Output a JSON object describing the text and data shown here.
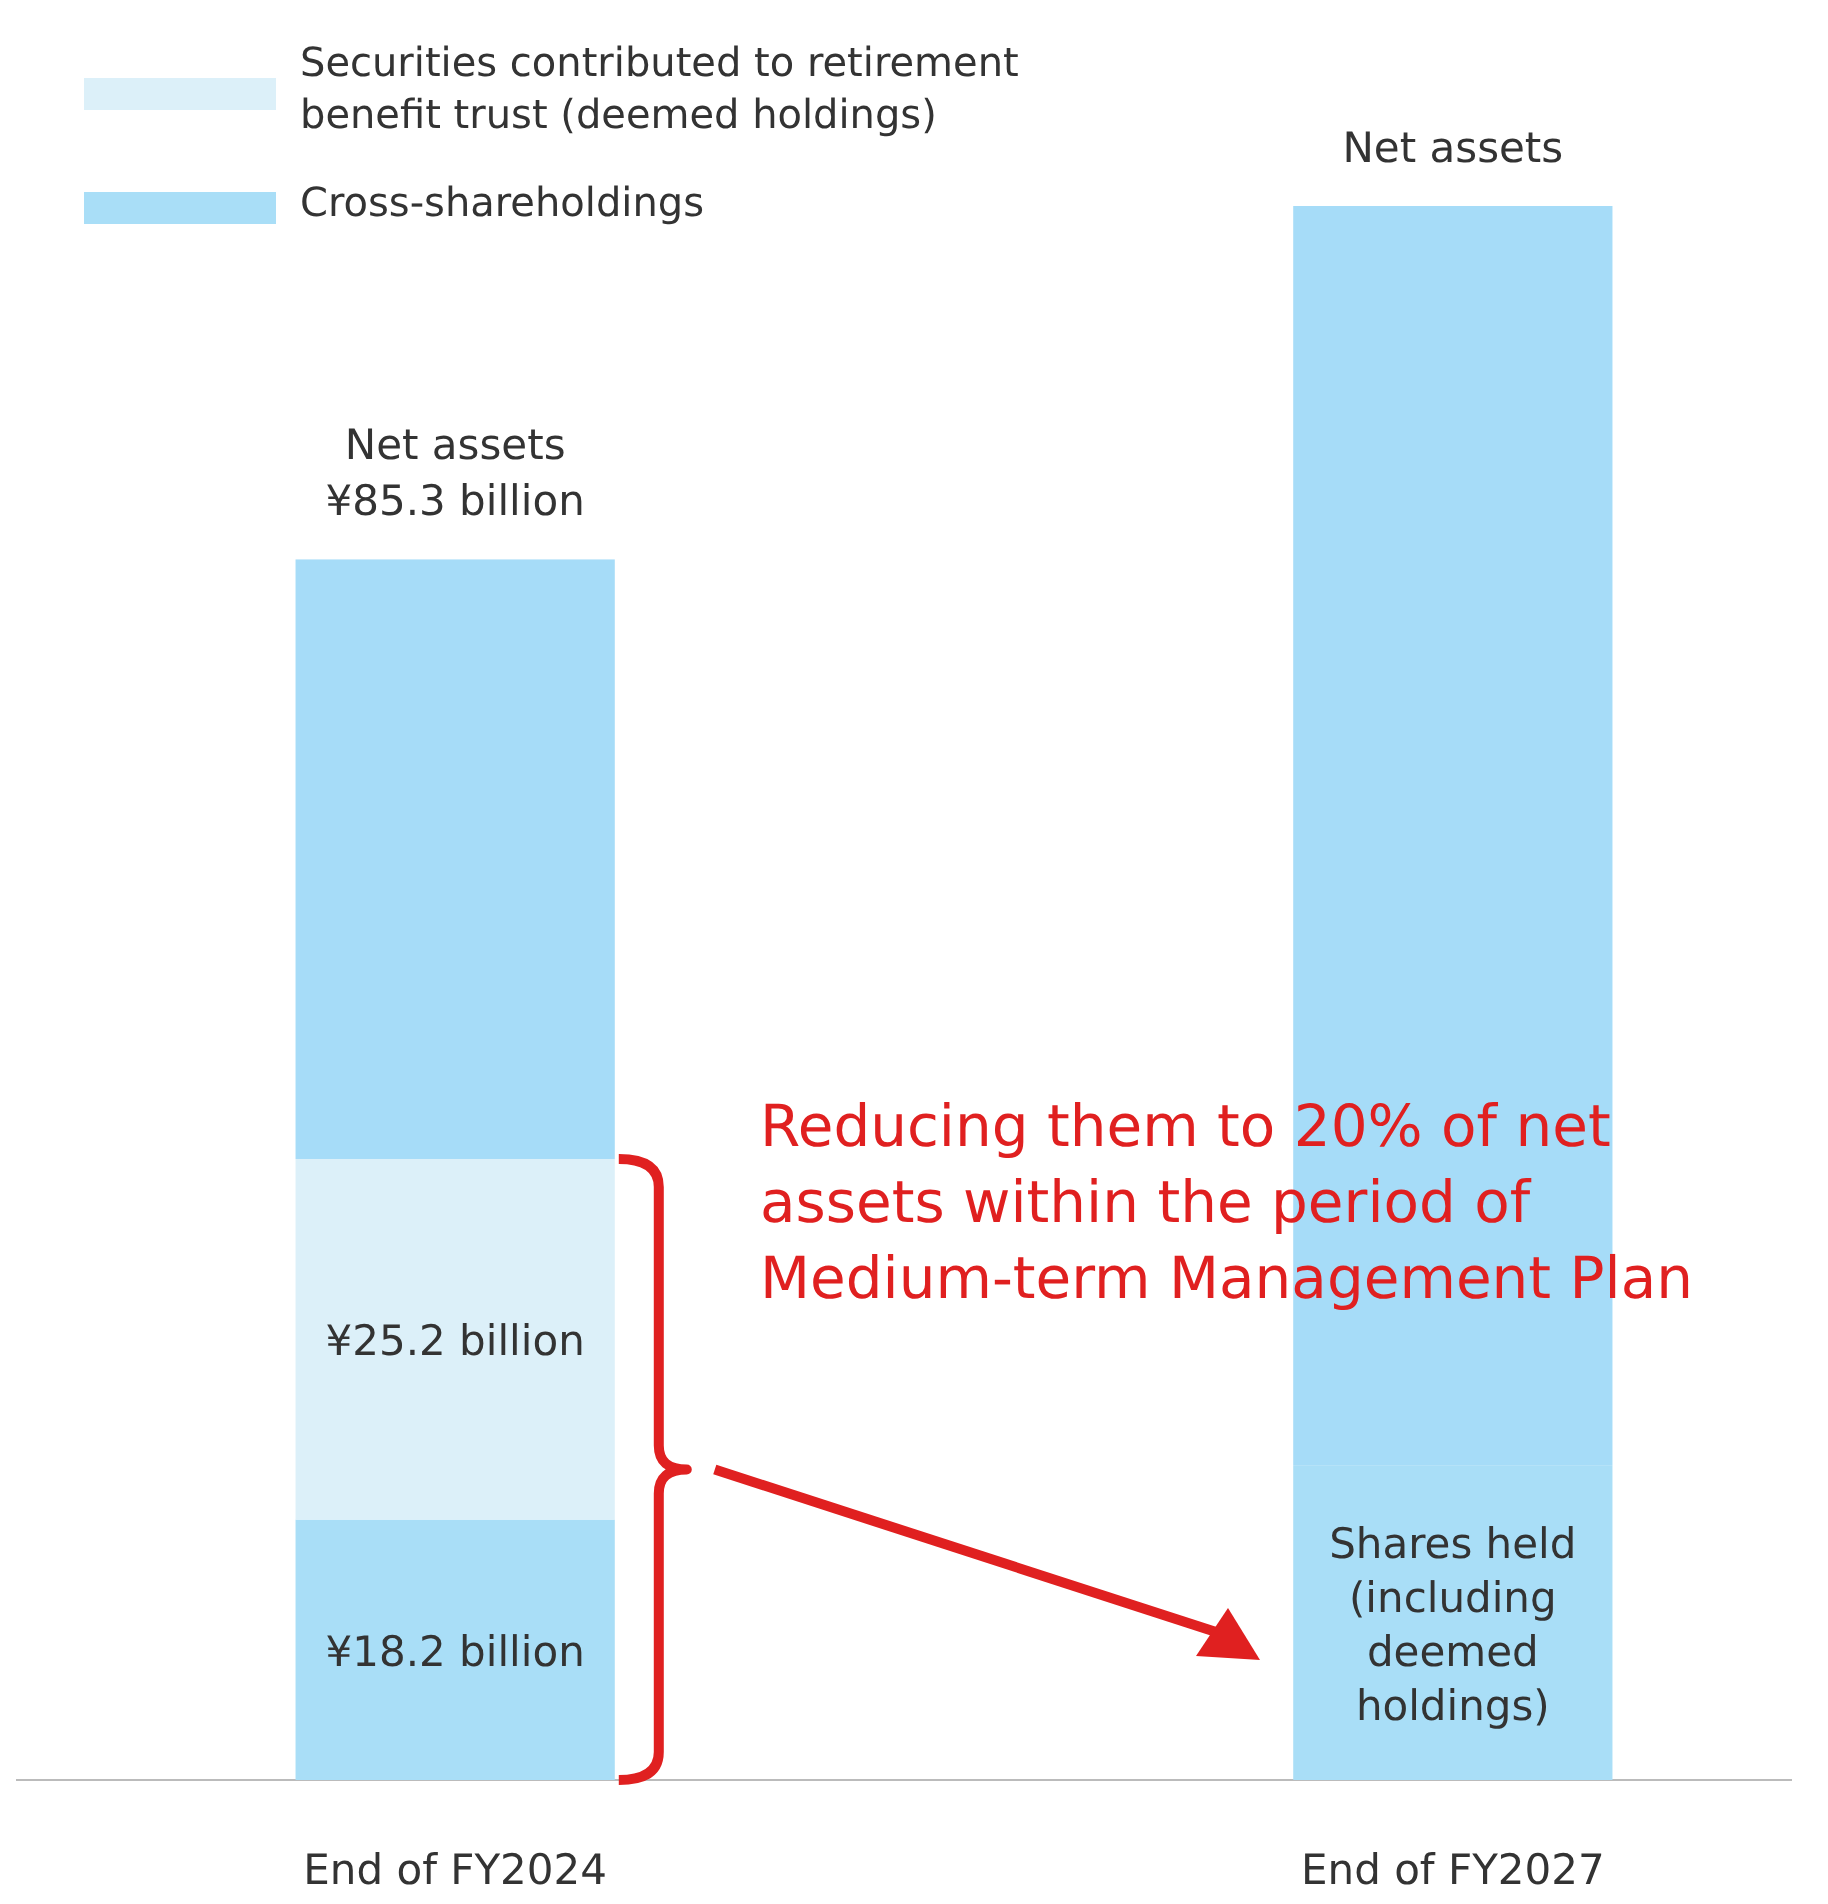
{
  "chart_data": {
    "type": "bar",
    "stacked": true,
    "categories": [
      "End of FY2024",
      "End of FY2027"
    ],
    "series": [
      {
        "name": "Cross-shareholdings",
        "color": "#a9def7",
        "values": [
          18.2,
          22
        ],
        "value_labels": [
          "¥18.2 billion",
          "Shares held\n(including\ndeemed\nholdings)"
        ]
      },
      {
        "name": "Securities contributed to retirement\nbenefit trust (deemed holdings)",
        "color": "#dcf0f9",
        "values": [
          25.2,
          null
        ],
        "value_labels": [
          "¥25.2 billion",
          null
        ]
      },
      {
        "color": "#a6dcf8",
        "values": [
          41.9,
          88
        ]
      }
    ],
    "totals": [
      "Net assets\n¥85.3 billion",
      "Net assets"
    ],
    "legend": "top left",
    "annotations": [
      "Reducing them to 20% of net\nassets within the period of\nMedium-term Management Plan"
    ]
  }
}
